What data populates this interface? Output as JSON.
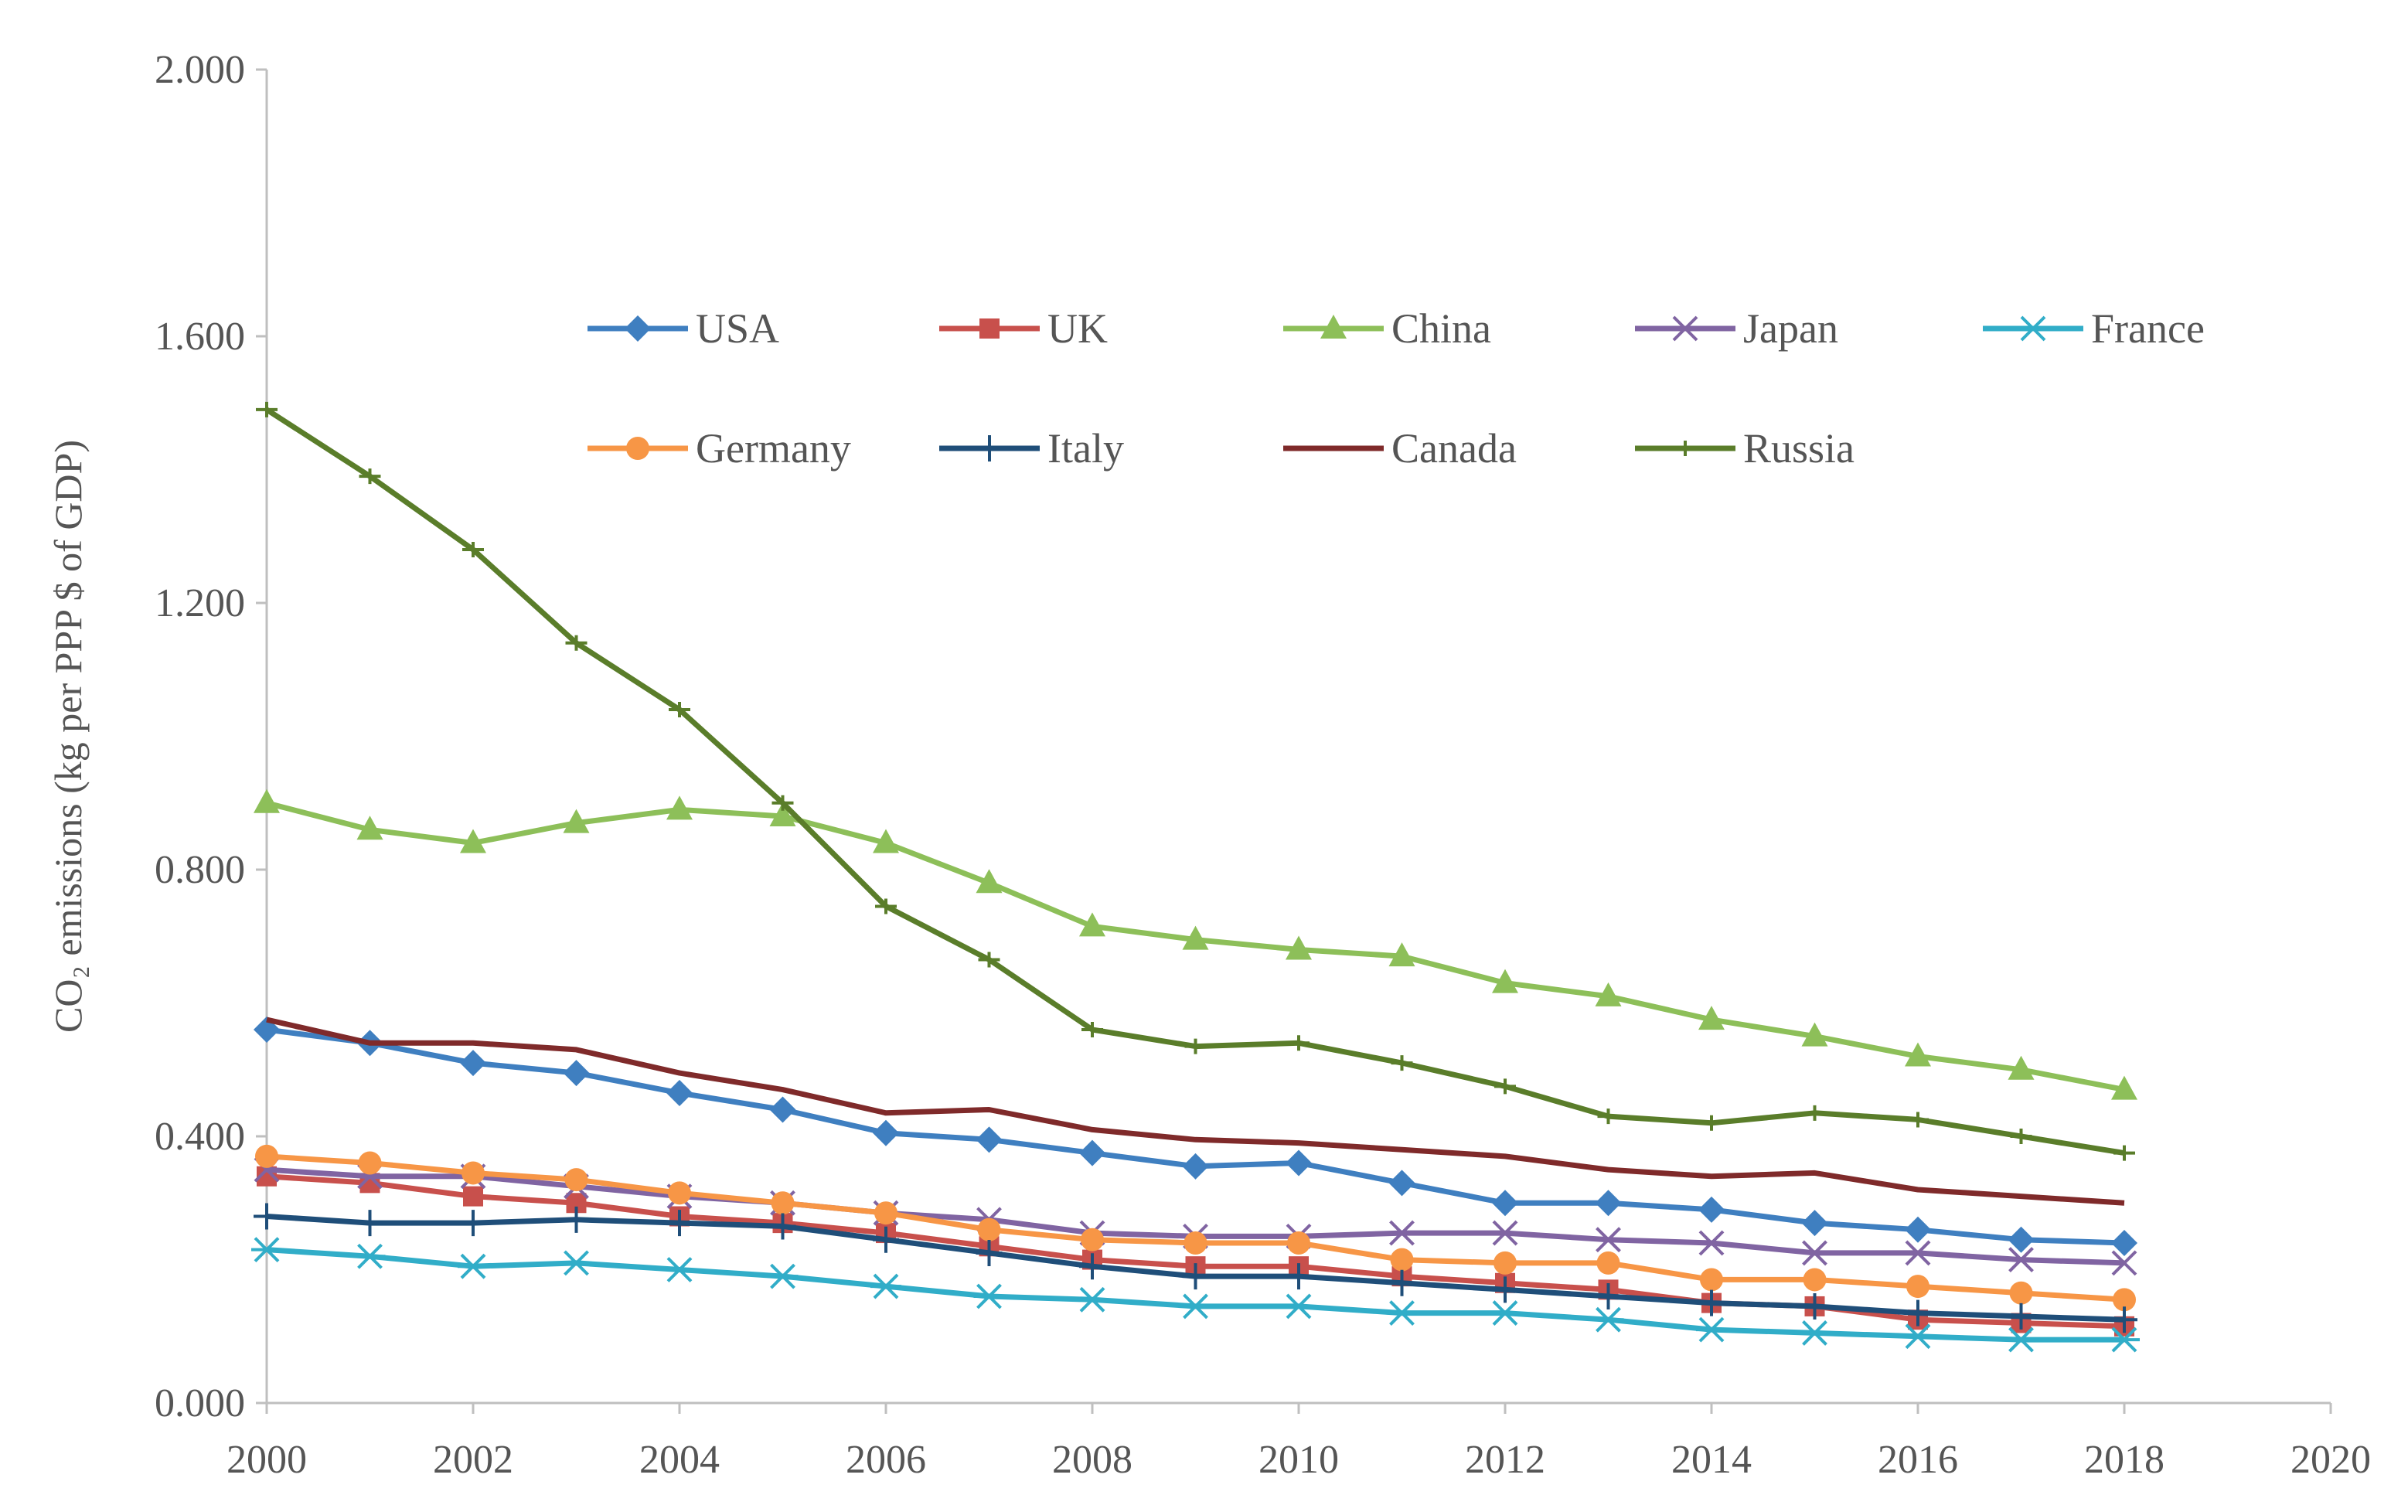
{
  "chart_data": {
    "type": "line",
    "title": "",
    "xlabel": "",
    "ylabel": "CO₂ emissions (kg per PPP $ of GDP)",
    "xlim": [
      2000,
      2020
    ],
    "ylim": [
      0,
      2
    ],
    "x_ticks": [
      "2000",
      "2002",
      "2004",
      "2006",
      "2008",
      "2010",
      "2012",
      "2014",
      "2016",
      "2018",
      "2020"
    ],
    "y_ticks": [
      "0.000",
      "0.400",
      "0.800",
      "1.200",
      "1.600",
      "2.000"
    ],
    "legend_position": "top-center",
    "grid": false,
    "x": [
      2000,
      2001,
      2002,
      2003,
      2004,
      2005,
      2006,
      2007,
      2008,
      2009,
      2010,
      2011,
      2012,
      2013,
      2014,
      2015,
      2016,
      2017,
      2018
    ],
    "series": [
      {
        "name": "USA",
        "color": "#3f7fc0",
        "marker": "diamond",
        "values": [
          0.56,
          0.54,
          0.51,
          0.495,
          0.465,
          0.44,
          0.405,
          0.395,
          0.375,
          0.355,
          0.36,
          0.33,
          0.3,
          0.3,
          0.29,
          0.27,
          0.26,
          0.245,
          0.24
        ]
      },
      {
        "name": "UK",
        "color": "#c8504c",
        "marker": "square",
        "values": [
          0.34,
          0.33,
          0.31,
          0.3,
          0.28,
          0.27,
          0.255,
          0.235,
          0.215,
          0.205,
          0.205,
          0.19,
          0.18,
          0.17,
          0.15,
          0.145,
          0.125,
          0.12,
          0.115
        ]
      },
      {
        "name": "China",
        "color": "#8dbf59",
        "marker": "triangle",
        "values": [
          0.9,
          0.86,
          0.84,
          0.87,
          0.89,
          0.88,
          0.84,
          0.78,
          0.715,
          0.695,
          0.68,
          0.67,
          0.63,
          0.61,
          0.575,
          0.55,
          0.52,
          0.5,
          0.47
        ]
      },
      {
        "name": "Japan",
        "color": "#8064a2",
        "marker": "x",
        "values": [
          0.35,
          0.34,
          0.34,
          0.325,
          0.31,
          0.3,
          0.285,
          0.275,
          0.255,
          0.25,
          0.25,
          0.255,
          0.255,
          0.245,
          0.24,
          0.225,
          0.225,
          0.215,
          0.21
        ]
      },
      {
        "name": "France",
        "color": "#31adc8",
        "marker": "star",
        "values": [
          0.23,
          0.22,
          0.205,
          0.21,
          0.2,
          0.19,
          0.175,
          0.16,
          0.155,
          0.145,
          0.145,
          0.135,
          0.135,
          0.125,
          0.11,
          0.105,
          0.1,
          0.095,
          0.095
        ]
      },
      {
        "name": "Germany",
        "color": "#f79646",
        "marker": "circle",
        "values": [
          0.37,
          0.36,
          0.345,
          0.335,
          0.315,
          0.3,
          0.285,
          0.26,
          0.245,
          0.24,
          0.24,
          0.215,
          0.21,
          0.21,
          0.185,
          0.185,
          0.175,
          0.165,
          0.155
        ]
      },
      {
        "name": "Italy",
        "color": "#1f4e79",
        "marker": "plus",
        "values": [
          0.28,
          0.27,
          0.27,
          0.275,
          0.27,
          0.265,
          0.245,
          0.225,
          0.205,
          0.19,
          0.19,
          0.18,
          0.17,
          0.16,
          0.15,
          0.145,
          0.135,
          0.13,
          0.125
        ]
      },
      {
        "name": "Canada",
        "color": "#7f2a2a",
        "marker": "none",
        "values": [
          0.575,
          0.54,
          0.54,
          0.53,
          0.495,
          0.47,
          0.435,
          0.44,
          0.41,
          0.395,
          0.39,
          0.38,
          0.37,
          0.35,
          0.34,
          0.345,
          0.32,
          0.31,
          0.3
        ]
      },
      {
        "name": "Russia",
        "color": "#5a7d2a",
        "marker": "dash",
        "values": [
          1.49,
          1.39,
          1.28,
          1.14,
          1.04,
          0.9,
          0.745,
          0.665,
          0.56,
          0.535,
          0.54,
          0.51,
          0.475,
          0.43,
          0.42,
          0.435,
          0.425,
          0.4,
          0.375
        ]
      }
    ]
  }
}
